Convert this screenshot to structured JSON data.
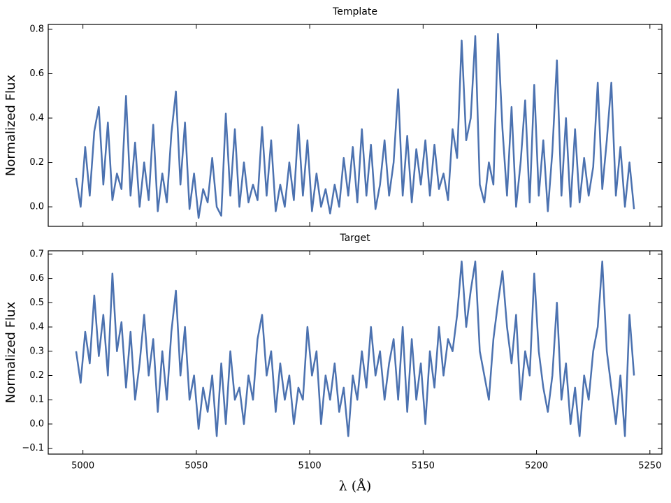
{
  "chart_data": [
    {
      "type": "line",
      "title": "Template",
      "ylabel": "Normalized Flux",
      "x": [
        4997,
        4999,
        5001,
        5003,
        5005,
        5007,
        5009,
        5011,
        5013,
        5015,
        5017,
        5019,
        5021,
        5023,
        5025,
        5027,
        5029,
        5031,
        5033,
        5035,
        5037,
        5039,
        5041,
        5043,
        5045,
        5047,
        5049,
        5051,
        5053,
        5055,
        5057,
        5059,
        5061,
        5063,
        5065,
        5067,
        5069,
        5071,
        5073,
        5075,
        5077,
        5079,
        5081,
        5083,
        5085,
        5087,
        5089,
        5091,
        5093,
        5095,
        5097,
        5099,
        5101,
        5103,
        5105,
        5107,
        5109,
        5111,
        5113,
        5115,
        5117,
        5119,
        5121,
        5123,
        5125,
        5127,
        5129,
        5131,
        5133,
        5135,
        5137,
        5139,
        5141,
        5143,
        5145,
        5147,
        5149,
        5151,
        5153,
        5155,
        5157,
        5159,
        5161,
        5163,
        5165,
        5167,
        5169,
        5171,
        5173,
        5175,
        5177,
        5179,
        5181,
        5183,
        5185,
        5187,
        5189,
        5191,
        5193,
        5195,
        5197,
        5199,
        5201,
        5203,
        5205,
        5207,
        5209,
        5211,
        5213,
        5215,
        5217,
        5219,
        5221,
        5223,
        5225,
        5227,
        5229,
        5231,
        5233,
        5235,
        5237,
        5239,
        5241,
        5243
      ],
      "series": [
        {
          "color": "#4c72b0",
          "values": [
            0.13,
            0.0,
            0.27,
            0.05,
            0.34,
            0.45,
            0.1,
            0.38,
            0.03,
            0.15,
            0.08,
            0.5,
            0.05,
            0.29,
            0.0,
            0.2,
            0.03,
            0.37,
            -0.02,
            0.15,
            0.02,
            0.33,
            0.52,
            0.1,
            0.38,
            -0.01,
            0.15,
            -0.05,
            0.08,
            0.02,
            0.22,
            0.0,
            -0.04,
            0.42,
            0.05,
            0.35,
            0.0,
            0.2,
            0.02,
            0.1,
            0.03,
            0.36,
            0.05,
            0.3,
            -0.02,
            0.1,
            0.0,
            0.2,
            0.03,
            0.37,
            0.05,
            0.3,
            -0.02,
            0.15,
            0.0,
            0.08,
            -0.03,
            0.1,
            0.0,
            0.22,
            0.05,
            0.27,
            0.02,
            0.35,
            0.05,
            0.28,
            -0.01,
            0.1,
            0.3,
            0.05,
            0.2,
            0.53,
            0.05,
            0.32,
            0.02,
            0.26,
            0.1,
            0.3,
            0.05,
            0.28,
            0.08,
            0.15,
            0.03,
            0.35,
            0.22,
            0.75,
            0.3,
            0.4,
            0.77,
            0.1,
            0.02,
            0.2,
            0.1,
            0.78,
            0.35,
            0.05,
            0.45,
            0.0,
            0.2,
            0.48,
            0.02,
            0.55,
            0.05,
            0.3,
            -0.02,
            0.25,
            0.66,
            0.05,
            0.4,
            0.0,
            0.35,
            0.02,
            0.22,
            0.05,
            0.18,
            0.56,
            0.08,
            0.3,
            0.56,
            0.05,
            0.27,
            0.0,
            0.2,
            -0.01
          ]
        }
      ],
      "xlim": [
        4984.7,
        5255.3
      ],
      "xticks": [
        5000,
        5050,
        5100,
        5150,
        5200,
        5250
      ],
      "ylim": [
        -0.088,
        0.822
      ],
      "yticks": [
        {
          "value": 0,
          "label": "0.0"
        },
        0.2,
        0.4,
        0.6,
        0.8
      ]
    },
    {
      "type": "line",
      "title": "Target",
      "ylabel": "Normalized Flux",
      "xlabel": "λ (Å)",
      "x": [
        4997,
        4999,
        5001,
        5003,
        5005,
        5007,
        5009,
        5011,
        5013,
        5015,
        5017,
        5019,
        5021,
        5023,
        5025,
        5027,
        5029,
        5031,
        5033,
        5035,
        5037,
        5039,
        5041,
        5043,
        5045,
        5047,
        5049,
        5051,
        5053,
        5055,
        5057,
        5059,
        5061,
        5063,
        5065,
        5067,
        5069,
        5071,
        5073,
        5075,
        5077,
        5079,
        5081,
        5083,
        5085,
        5087,
        5089,
        5091,
        5093,
        5095,
        5097,
        5099,
        5101,
        5103,
        5105,
        5107,
        5109,
        5111,
        5113,
        5115,
        5117,
        5119,
        5121,
        5123,
        5125,
        5127,
        5129,
        5131,
        5133,
        5135,
        5137,
        5139,
        5141,
        5143,
        5145,
        5147,
        5149,
        5151,
        5153,
        5155,
        5157,
        5159,
        5161,
        5163,
        5165,
        5167,
        5169,
        5171,
        5173,
        5175,
        5177,
        5179,
        5181,
        5183,
        5185,
        5187,
        5189,
        5191,
        5193,
        5195,
        5197,
        5199,
        5201,
        5203,
        5205,
        5207,
        5209,
        5211,
        5213,
        5215,
        5217,
        5219,
        5221,
        5223,
        5225,
        5227,
        5229,
        5231,
        5233,
        5235,
        5237,
        5239,
        5241,
        5243
      ],
      "series": [
        {
          "color": "#4c72b0",
          "values": [
            0.3,
            0.17,
            0.38,
            0.25,
            0.53,
            0.28,
            0.45,
            0.2,
            0.62,
            0.3,
            0.42,
            0.15,
            0.38,
            0.1,
            0.25,
            0.45,
            0.2,
            0.35,
            0.05,
            0.3,
            0.1,
            0.38,
            0.55,
            0.2,
            0.4,
            0.1,
            0.2,
            -0.02,
            0.15,
            0.05,
            0.2,
            -0.05,
            0.25,
            0.0,
            0.3,
            0.1,
            0.15,
            0.0,
            0.2,
            0.1,
            0.35,
            0.45,
            0.2,
            0.3,
            0.05,
            0.25,
            0.1,
            0.2,
            0.0,
            0.15,
            0.1,
            0.4,
            0.2,
            0.3,
            0.0,
            0.2,
            0.1,
            0.25,
            0.05,
            0.15,
            -0.05,
            0.2,
            0.1,
            0.3,
            0.15,
            0.4,
            0.2,
            0.3,
            0.1,
            0.25,
            0.35,
            0.1,
            0.4,
            0.05,
            0.35,
            0.1,
            0.25,
            0.0,
            0.3,
            0.15,
            0.4,
            0.2,
            0.35,
            0.3,
            0.45,
            0.67,
            0.4,
            0.55,
            0.67,
            0.3,
            0.2,
            0.1,
            0.35,
            0.5,
            0.63,
            0.4,
            0.25,
            0.45,
            0.1,
            0.3,
            0.2,
            0.62,
            0.3,
            0.15,
            0.05,
            0.2,
            0.5,
            0.1,
            0.25,
            0.0,
            0.15,
            -0.05,
            0.2,
            0.1,
            0.3,
            0.4,
            0.67,
            0.3,
            0.15,
            0.0,
            0.2,
            -0.05,
            0.45,
            0.2
          ]
        }
      ],
      "xlim": [
        4984.7,
        5255.3
      ],
      "xticks": [
        5000,
        5050,
        5100,
        5150,
        5200,
        5250
      ],
      "ylim": [
        -0.124,
        0.714
      ],
      "yticks": [
        {
          "value": -0.1,
          "label": "−0.1"
        },
        {
          "value": 0,
          "label": "0.0"
        },
        0.1,
        0.2,
        0.3,
        0.4,
        0.5,
        0.6,
        0.7
      ]
    }
  ]
}
